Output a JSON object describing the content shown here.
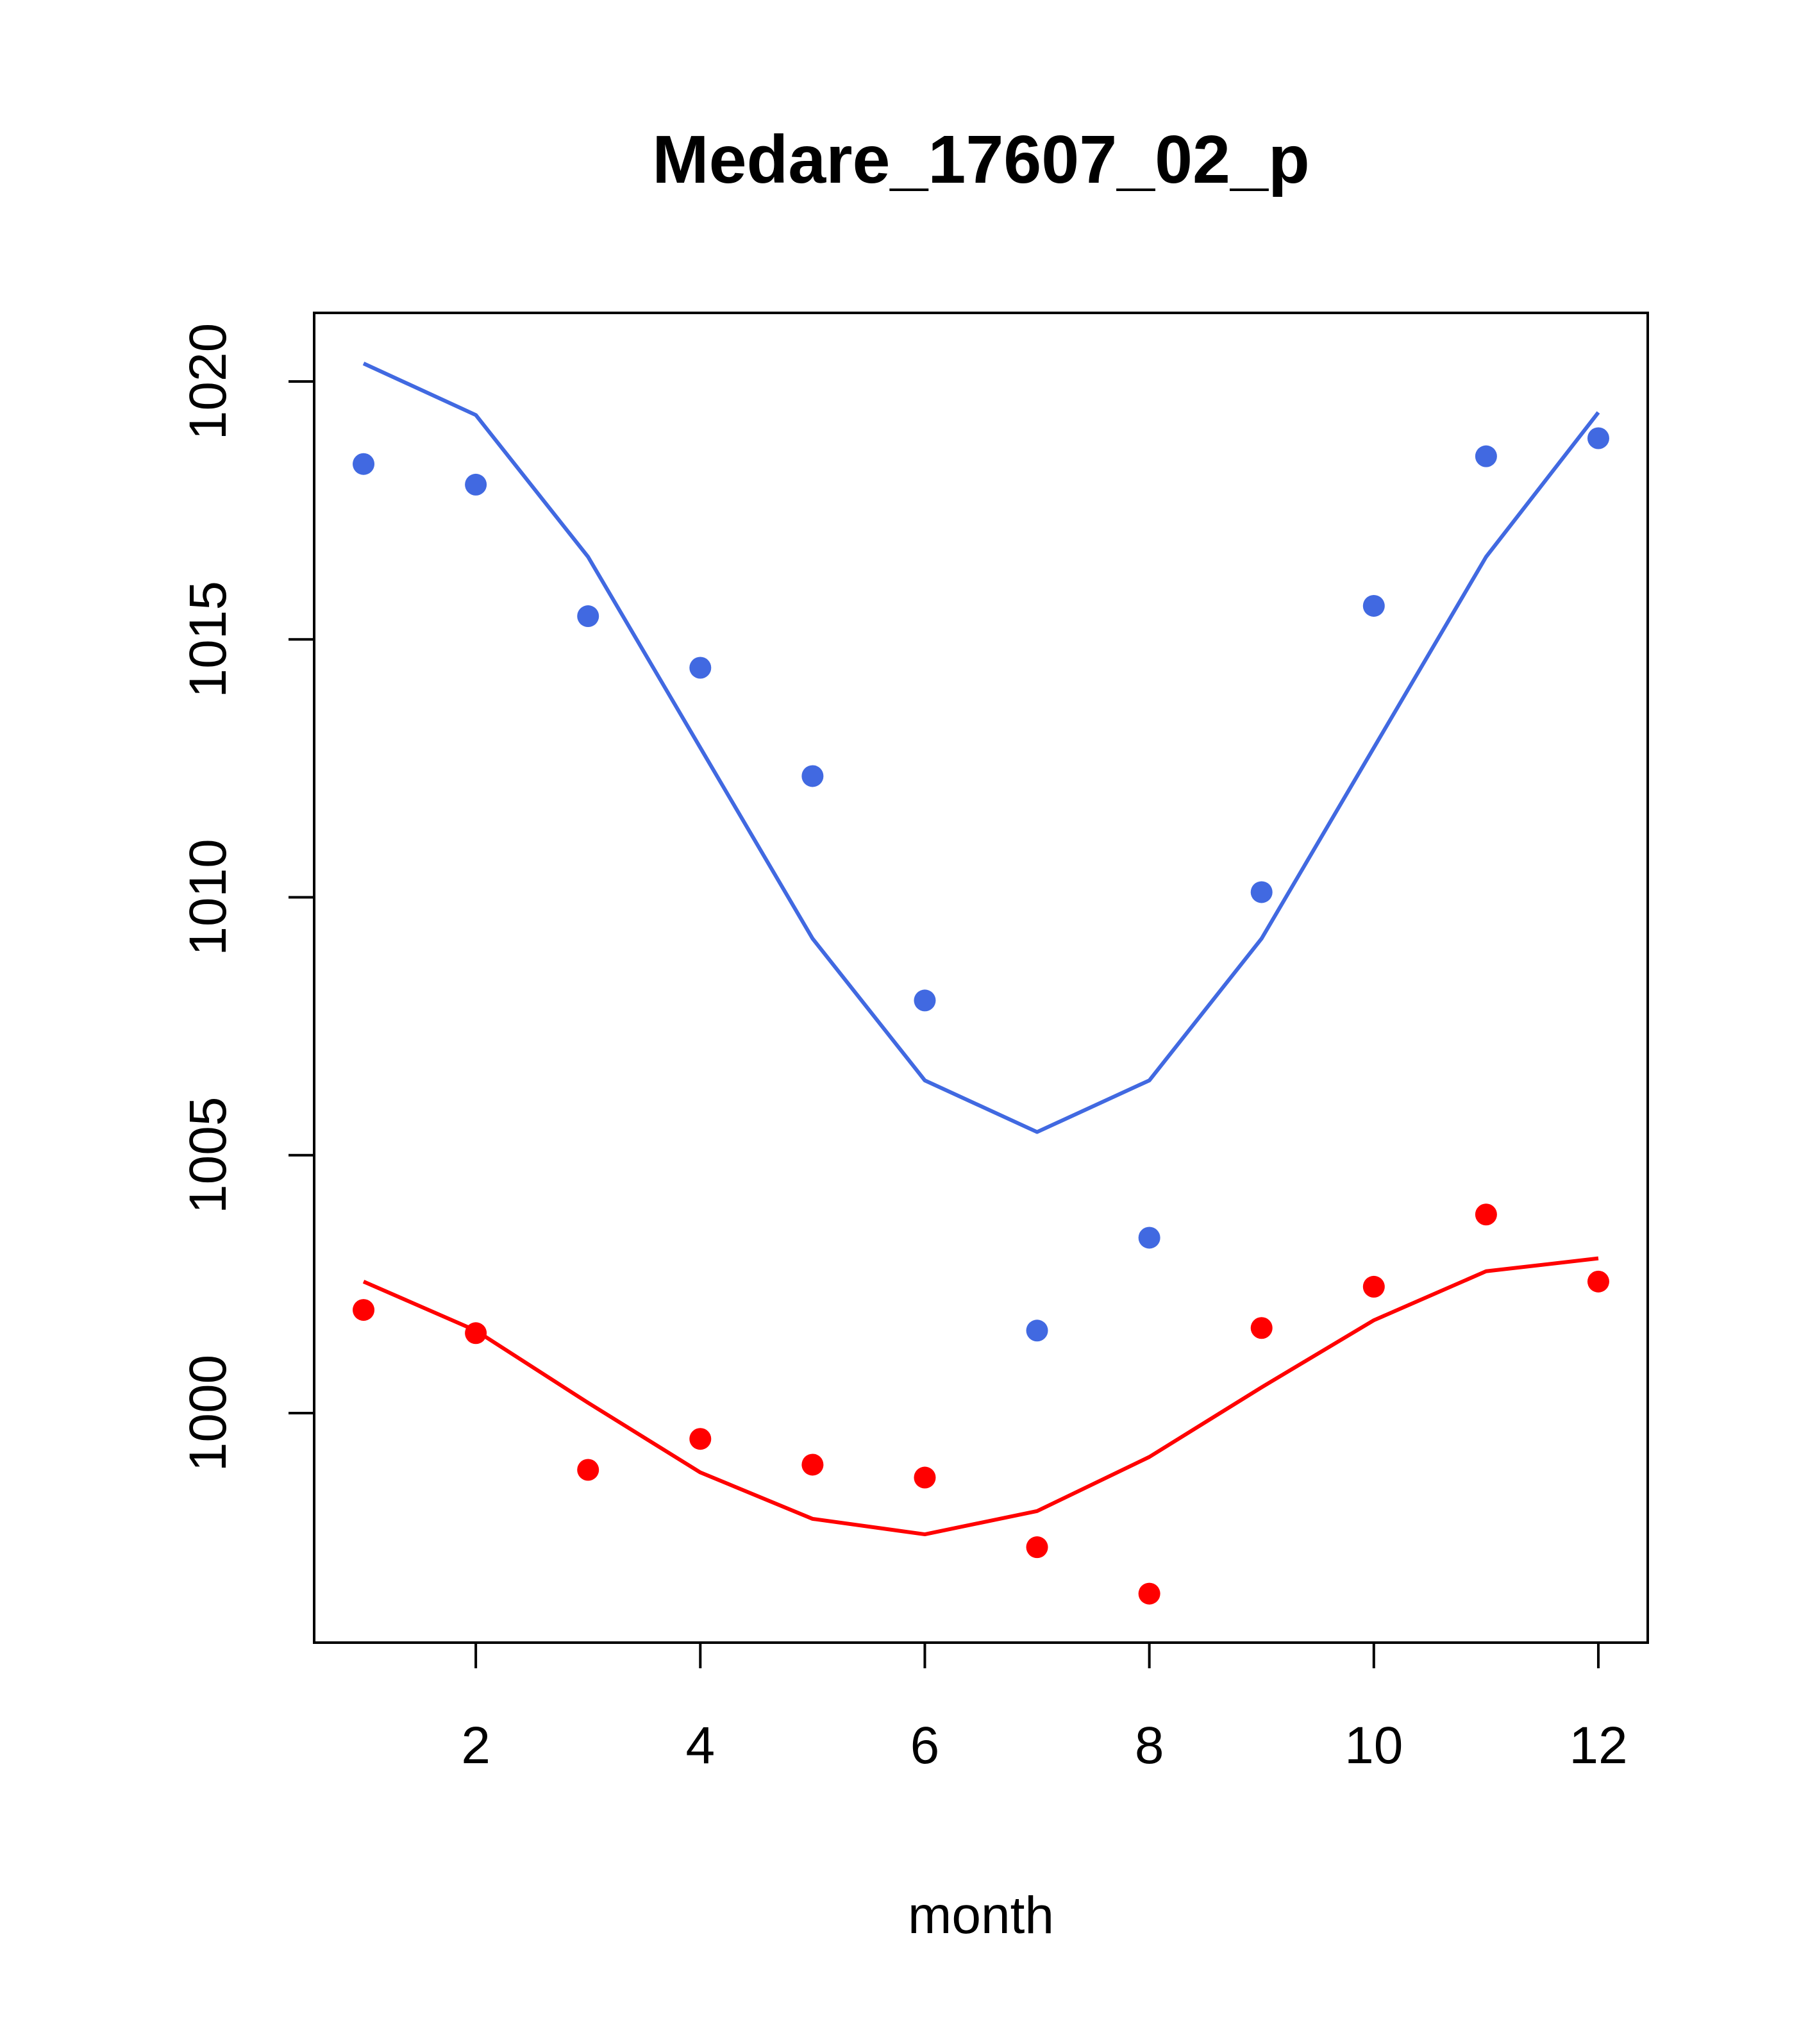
{
  "chart_data": {
    "type": "scatter",
    "title": "Medare_17607_02_p",
    "xlabel": "month",
    "ylabel": "",
    "xlim": [
      0.56,
      12.44
    ],
    "ylim": [
      995.55,
      1021.33
    ],
    "xticks": [
      2,
      4,
      6,
      8,
      10,
      12
    ],
    "yticks": [
      1000,
      1005,
      1010,
      1015,
      1020
    ],
    "grid": false,
    "x": [
      1,
      2,
      3,
      4,
      5,
      6,
      7,
      8,
      9,
      10,
      11,
      12
    ],
    "series": [
      {
        "name": "blue points",
        "kind": "points",
        "color": "#4169E1",
        "values": [
          1018.4,
          1018.0,
          1015.45,
          1014.45,
          1012.35,
          1008.0,
          1001.6,
          1003.4,
          1010.1,
          1015.65,
          1018.55,
          1018.9
        ]
      },
      {
        "name": "blue line",
        "kind": "line",
        "color": "#4169E1",
        "values": [
          1020.35,
          1019.35,
          1016.6,
          1012.9,
          1009.2,
          1006.45,
          1005.45,
          1006.45,
          1009.2,
          1012.9,
          1016.6,
          1019.4
        ]
      },
      {
        "name": "red points",
        "kind": "points",
        "color": "#FF0000",
        "values": [
          1002.0,
          1001.55,
          998.9,
          999.5,
          999.0,
          998.75,
          997.4,
          996.5,
          1001.65,
          1002.45,
          1003.85,
          1002.55
        ]
      },
      {
        "name": "red line",
        "kind": "line",
        "color": "#FF0000",
        "values": [
          1002.55,
          1001.6,
          1000.2,
          998.85,
          997.95,
          997.65,
          998.1,
          999.15,
          1000.5,
          1001.8,
          1002.75,
          1003.0
        ]
      }
    ]
  }
}
